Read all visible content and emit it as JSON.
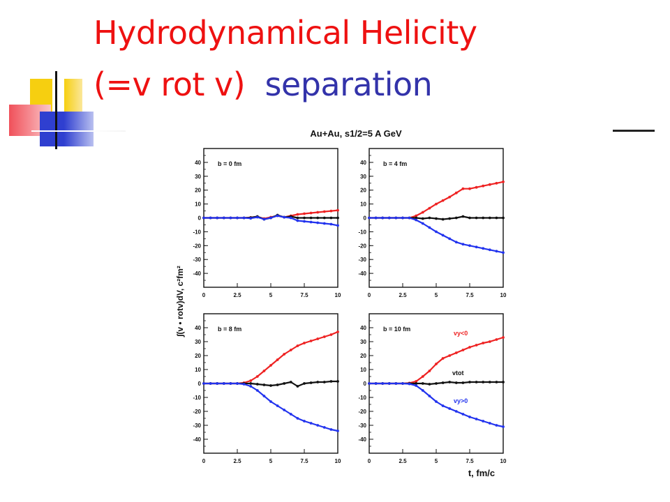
{
  "slide": {
    "title_line1": "Hydrodynamical Helicity",
    "title_line2a": "(=v rot v)",
    "title_line2b": "  separation",
    "colors": {
      "title_red": "#ee1111",
      "title_blue": "#3333aa",
      "deco_yellow": "#f6cf10",
      "deco_blue": "#2f3fd0",
      "deco_red": "#f0505a"
    }
  },
  "chart_data": {
    "type": "line",
    "title": "Au+Au, s1/2=5 A GeV",
    "xlabel": "t, fm/c",
    "ylabel": "∫(v • rotv)dV, c²fm²",
    "xlim": [
      0,
      10
    ],
    "ylim": [
      -50,
      50
    ],
    "x_ticks": [
      "0",
      "2.5",
      "5",
      "7.5",
      "10"
    ],
    "y_ticks": [
      "40",
      "30",
      "20",
      "10",
      "0",
      "-10",
      "-20",
      "-30",
      "-40"
    ],
    "grid": false,
    "series_colors": {
      "vy_neg": "#ee2222",
      "vtot": "#111111",
      "vy_pos": "#2233ee"
    },
    "annotations": {
      "vy_neg": "vy<0",
      "vtot": "vtot",
      "vy_pos": "vy>0"
    },
    "panels": [
      {
        "label": "b = 0 fm",
        "x": [
          0,
          0.5,
          1,
          1.5,
          2,
          2.5,
          3,
          3.5,
          4,
          4.5,
          5,
          5.5,
          6,
          6.5,
          7,
          7.5,
          8,
          8.5,
          9,
          9.5,
          10
        ],
        "series": [
          {
            "key": "vy_neg",
            "values": [
              0,
              0,
              0,
              0,
              0,
              0,
              0,
              0.3,
              0.8,
              -0.5,
              0.5,
              1.5,
              0.5,
              1.5,
              2.5,
              3,
              3.5,
              4,
              4.5,
              5,
              5.5
            ]
          },
          {
            "key": "vtot",
            "values": [
              0,
              0,
              0,
              0,
              0,
              0,
              0,
              0.2,
              1,
              -1,
              0,
              2,
              0.5,
              1,
              0,
              0,
              0,
              0,
              0,
              0,
              0
            ]
          },
          {
            "key": "vy_pos",
            "values": [
              0,
              0,
              0,
              0,
              0,
              0,
              0,
              -0.3,
              0.5,
              -1,
              0,
              1.5,
              0.5,
              0,
              -2,
              -2.5,
              -3,
              -3.5,
              -4,
              -4.5,
              -5.5
            ]
          }
        ]
      },
      {
        "label": "b = 4 fm",
        "x": [
          0,
          0.5,
          1,
          1.5,
          2,
          2.5,
          3,
          3.5,
          4,
          4.5,
          5,
          5.5,
          6,
          6.5,
          7,
          7.5,
          8,
          8.5,
          9,
          9.5,
          10
        ],
        "series": [
          {
            "key": "vy_neg",
            "values": [
              0,
              0,
              0,
              0,
              0,
              0,
              0,
              1.5,
              4,
              7,
              10,
              12.5,
              15,
              18,
              21,
              21,
              22,
              23,
              24,
              25,
              26
            ]
          },
          {
            "key": "vtot",
            "values": [
              0,
              0,
              0,
              0,
              0,
              0,
              0,
              0,
              -0.5,
              0,
              -0.5,
              -1,
              -0.5,
              0,
              1,
              0,
              0,
              0,
              0,
              0,
              0
            ]
          },
          {
            "key": "vy_pos",
            "values": [
              0,
              0,
              0,
              0,
              0,
              0,
              0,
              -1.5,
              -4,
              -7,
              -10,
              -12.5,
              -15,
              -17.5,
              -19,
              -20,
              -21,
              -22,
              -23,
              -24,
              -25
            ]
          }
        ]
      },
      {
        "label": "b = 8 fm",
        "x": [
          0,
          0.5,
          1,
          1.5,
          2,
          2.5,
          3,
          3.5,
          4,
          4.5,
          5,
          5.5,
          6,
          6.5,
          7,
          7.5,
          8,
          8.5,
          9,
          9.5,
          10
        ],
        "series": [
          {
            "key": "vy_neg",
            "values": [
              0,
              0,
              0,
              0,
              0,
              0,
              0.5,
              2,
              5,
              9,
              13,
              17,
              21,
              24,
              27,
              29,
              30.5,
              32,
              33.5,
              35,
              37
            ]
          },
          {
            "key": "vtot",
            "values": [
              0,
              0,
              0,
              0,
              0,
              0,
              0,
              0,
              -0.5,
              -1,
              -1.5,
              -1,
              0,
              1,
              -2,
              0,
              0.5,
              1,
              1,
              1.5,
              1.5
            ]
          },
          {
            "key": "vy_pos",
            "values": [
              0,
              0,
              0,
              0,
              0,
              0,
              -0.5,
              -2,
              -5,
              -9,
              -13,
              -16,
              -19,
              -22,
              -25,
              -27,
              -28.5,
              -30,
              -31.5,
              -33,
              -34
            ]
          }
        ]
      },
      {
        "label": "b = 10 fm",
        "x": [
          0,
          0.5,
          1,
          1.5,
          2,
          2.5,
          3,
          3.5,
          4,
          4.5,
          5,
          5.5,
          6,
          6.5,
          7,
          7.5,
          8,
          8.5,
          9,
          9.5,
          10
        ],
        "series": [
          {
            "key": "vy_neg",
            "values": [
              0,
              0,
              0,
              0,
              0,
              0,
              0.3,
              1.5,
              5,
              9,
              14,
              18,
              20,
              22,
              24,
              26,
              27.5,
              29,
              30,
              31.5,
              33
            ]
          },
          {
            "key": "vtot",
            "values": [
              0,
              0,
              0,
              0,
              0,
              0,
              0,
              0,
              0,
              -0.5,
              0,
              0.5,
              1,
              0.5,
              0.5,
              1,
              1,
              1,
              1,
              1,
              1
            ]
          },
          {
            "key": "vy_pos",
            "values": [
              0,
              0,
              0,
              0,
              0,
              0,
              -0.3,
              -1.5,
              -5,
              -9,
              -13,
              -16,
              -18,
              -20,
              -22,
              -24,
              -25.5,
              -27,
              -28.5,
              -30,
              -31
            ]
          }
        ]
      }
    ]
  }
}
